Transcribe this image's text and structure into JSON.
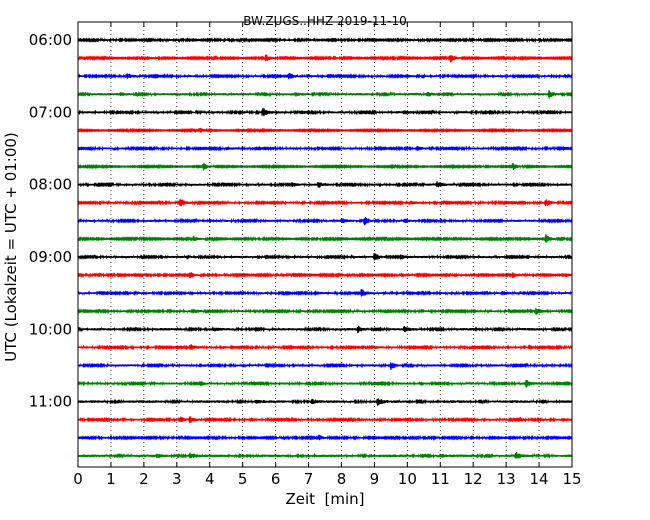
{
  "chart_data": {
    "type": "line",
    "title": "BW.ZUGS..HHZ 2019-11-10",
    "xlabel": "Zeit  [min]",
    "ylabel": "UTC (Lokalzeit = UTC + 01:00)",
    "xlim": [
      0,
      15
    ],
    "x_ticks": [
      "0",
      "1",
      "2",
      "3",
      "4",
      "5",
      "6",
      "7",
      "8",
      "9",
      "10",
      "11",
      "12",
      "13",
      "14",
      "15"
    ],
    "y_tick_labels": [
      "06:00",
      "07:00",
      "08:00",
      "09:00",
      "10:00",
      "11:00"
    ],
    "grid": "vertical dotted",
    "trace_colors": [
      "#000000",
      "#ff0000",
      "#0000ff",
      "#008000"
    ],
    "traces": [
      {
        "start": "06:00",
        "noise": 0.8,
        "events": [
          [
            7.0,
            1.2
          ],
          [
            10.0,
            1.0
          ]
        ]
      },
      {
        "start": "06:15",
        "noise": 0.7,
        "events": [
          [
            2.1,
            1.5
          ],
          [
            5.7,
            3.5
          ],
          [
            11.3,
            4.5
          ]
        ]
      },
      {
        "start": "06:30",
        "noise": 0.9,
        "events": [
          [
            1.5,
            2.5
          ],
          [
            6.4,
            3.5
          ],
          [
            10.0,
            1.8
          ]
        ]
      },
      {
        "start": "06:45",
        "noise": 1.1,
        "events": [
          [
            1.3,
            1.5
          ],
          [
            6.6,
            1.6
          ],
          [
            10.6,
            2.3
          ],
          [
            14.3,
            3.5
          ]
        ]
      },
      {
        "start": "07:00",
        "noise": 1.0,
        "events": [
          [
            4.9,
            2.0
          ],
          [
            5.6,
            4.5
          ],
          [
            9.9,
            1.5
          ]
        ]
      },
      {
        "start": "07:15",
        "noise": 0.6,
        "events": [
          [
            3.7,
            2.5
          ]
        ]
      },
      {
        "start": "07:30",
        "noise": 0.9,
        "events": [
          [
            4.5,
            1.5
          ],
          [
            10.3,
            1.8
          ]
        ]
      },
      {
        "start": "07:45",
        "noise": 0.6,
        "events": [
          [
            3.8,
            4.0
          ],
          [
            12.2,
            1.5
          ],
          [
            13.2,
            3.5
          ]
        ]
      },
      {
        "start": "08:00",
        "noise": 1.0,
        "events": [
          [
            6.5,
            2.5
          ],
          [
            7.3,
            2.5
          ],
          [
            10.9,
            2.5
          ]
        ]
      },
      {
        "start": "08:15",
        "noise": 0.9,
        "events": [
          [
            3.1,
            4.0
          ],
          [
            10.1,
            1.5
          ],
          [
            14.2,
            3.5
          ]
        ]
      },
      {
        "start": "08:30",
        "noise": 1.0,
        "events": [
          [
            8.0,
            2.2
          ],
          [
            8.7,
            4.5
          ],
          [
            9.9,
            2.0
          ]
        ]
      },
      {
        "start": "08:45",
        "noise": 0.7,
        "events": [
          [
            3.5,
            3.0
          ],
          [
            14.2,
            4.5
          ]
        ]
      },
      {
        "start": "09:00",
        "noise": 1.0,
        "events": [
          [
            4.2,
            1.5
          ],
          [
            9.0,
            4.0
          ],
          [
            9.8,
            2.5
          ]
        ]
      },
      {
        "start": "09:15",
        "noise": 0.8,
        "events": [
          [
            3.4,
            3.5
          ],
          [
            13.2,
            2.5
          ],
          [
            14.8,
            2.0
          ]
        ]
      },
      {
        "start": "09:30",
        "noise": 0.9,
        "events": [
          [
            7.2,
            1.5
          ],
          [
            8.6,
            4.5
          ],
          [
            12.9,
            1.5
          ]
        ]
      },
      {
        "start": "09:45",
        "noise": 0.9,
        "events": [
          [
            3.5,
            2.0
          ],
          [
            12.0,
            1.5
          ],
          [
            13.9,
            3.5
          ]
        ]
      },
      {
        "start": "10:00",
        "noise": 1.1,
        "events": [
          [
            4.1,
            1.5
          ],
          [
            8.5,
            3.5
          ],
          [
            9.9,
            2.5
          ]
        ]
      },
      {
        "start": "10:15",
        "noise": 0.9,
        "events": [
          [
            3.4,
            3.5
          ],
          [
            4.4,
            1.5
          ],
          [
            8.9,
            2.0
          ],
          [
            13.7,
            2.5
          ]
        ]
      },
      {
        "start": "10:30",
        "noise": 1.0,
        "events": [
          [
            3.7,
            1.5
          ],
          [
            9.5,
            4.0
          ]
        ]
      },
      {
        "start": "10:45",
        "noise": 1.0,
        "events": [
          [
            3.7,
            3.0
          ],
          [
            10.4,
            1.5
          ],
          [
            13.6,
            3.5
          ]
        ]
      },
      {
        "start": "11:00",
        "noise": 1.2,
        "events": [
          [
            5.4,
            1.5
          ],
          [
            7.1,
            2.5
          ],
          [
            9.1,
            3.5
          ]
        ]
      },
      {
        "start": "11:15",
        "noise": 0.9,
        "events": [
          [
            3.1,
            3.0
          ],
          [
            3.4,
            3.0
          ],
          [
            13.4,
            3.0
          ],
          [
            14.7,
            2.0
          ]
        ]
      },
      {
        "start": "11:30",
        "noise": 0.8,
        "events": [
          [
            7.3,
            3.5
          ],
          [
            10.8,
            2.0
          ]
        ]
      },
      {
        "start": "11:45",
        "noise": 1.2,
        "events": [
          [
            2.4,
            1.6
          ],
          [
            3.4,
            3.0
          ],
          [
            11.0,
            1.5
          ],
          [
            13.3,
            3.0
          ]
        ]
      }
    ]
  }
}
